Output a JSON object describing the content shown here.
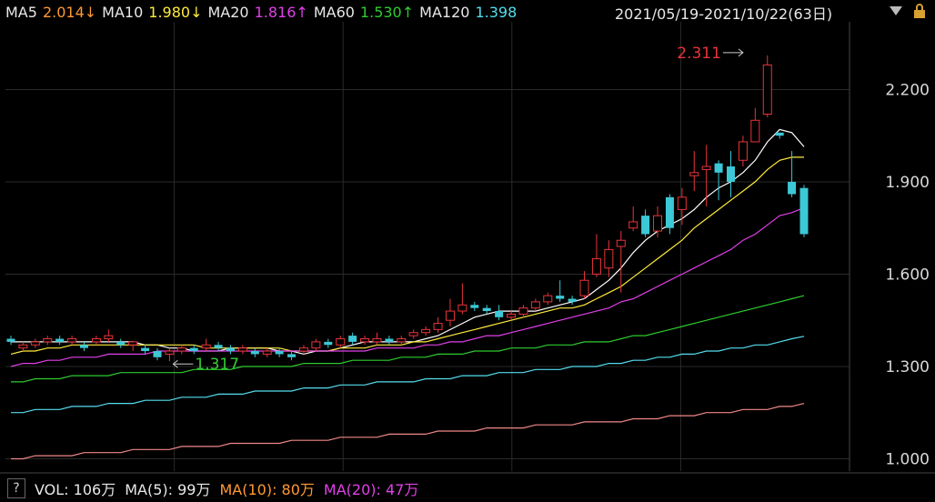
{
  "legend": {
    "ma5_label": "MA5",
    "ma5_value": "2.014↓",
    "ma10_label": "MA10",
    "ma10_value": "1.980↓",
    "ma20_label": "MA20",
    "ma20_value": "1.816↑",
    "ma60_label": "MA60",
    "ma60_value": "1.530↑",
    "ma120_label": "MA120",
    "ma120_value": "1.398",
    "date_overlay": "2021/05/19-2021/10/22(63日)"
  },
  "volume": {
    "help": "?",
    "vol": "VOL: 106万",
    "ma5": "MA(5): 99万",
    "ma10": "MA(10): 80万",
    "ma20": "MA(20): 47万"
  },
  "colors": {
    "up": "#e8343a",
    "down": "#3cc8d6",
    "ma5": "#ffffff",
    "ma10": "#ffeb3b",
    "ma20": "#e040e8",
    "ma60": "#2ecc2e",
    "ma120": "#55ddee",
    "ma250": "#f08888",
    "grid": "#2a2a2a"
  },
  "chart_data": {
    "type": "candlestick",
    "ylim": [
      0.96,
      2.42
    ],
    "yticks": [
      {
        "value": 1.0,
        "label": "1.000"
      },
      {
        "value": 1.3,
        "label": "1.300"
      },
      {
        "value": 1.6,
        "label": "1.600"
      },
      {
        "value": 1.9,
        "label": "1.900"
      },
      {
        "value": 2.2,
        "label": "2.200"
      }
    ],
    "annotations": [
      {
        "label": "2.311",
        "index": 60,
        "value": 2.311,
        "kind": "high"
      },
      {
        "label": "1.317",
        "index": 13,
        "value": 1.317,
        "kind": "low"
      }
    ],
    "candles": [
      [
        1.39,
        1.38,
        1.4,
        1.37
      ],
      [
        1.36,
        1.37,
        1.38,
        1.35
      ],
      [
        1.37,
        1.38,
        1.39,
        1.36
      ],
      [
        1.38,
        1.39,
        1.4,
        1.37
      ],
      [
        1.39,
        1.38,
        1.4,
        1.37
      ],
      [
        1.38,
        1.39,
        1.4,
        1.37
      ],
      [
        1.37,
        1.36,
        1.38,
        1.35
      ],
      [
        1.38,
        1.39,
        1.4,
        1.37
      ],
      [
        1.39,
        1.4,
        1.42,
        1.38
      ],
      [
        1.38,
        1.37,
        1.39,
        1.36
      ],
      [
        1.37,
        1.38,
        1.38,
        1.35
      ],
      [
        1.36,
        1.35,
        1.37,
        1.34
      ],
      [
        1.35,
        1.33,
        1.36,
        1.32
      ],
      [
        1.34,
        1.35,
        1.36,
        1.317
      ],
      [
        1.35,
        1.36,
        1.37,
        1.34
      ],
      [
        1.36,
        1.35,
        1.37,
        1.34
      ],
      [
        1.36,
        1.37,
        1.39,
        1.35
      ],
      [
        1.37,
        1.36,
        1.38,
        1.35
      ],
      [
        1.36,
        1.35,
        1.37,
        1.34
      ],
      [
        1.35,
        1.36,
        1.37,
        1.34
      ],
      [
        1.35,
        1.34,
        1.36,
        1.33
      ],
      [
        1.34,
        1.35,
        1.36,
        1.33
      ],
      [
        1.35,
        1.34,
        1.36,
        1.33
      ],
      [
        1.34,
        1.33,
        1.35,
        1.32
      ],
      [
        1.35,
        1.36,
        1.37,
        1.34
      ],
      [
        1.36,
        1.38,
        1.39,
        1.35
      ],
      [
        1.38,
        1.37,
        1.39,
        1.36
      ],
      [
        1.37,
        1.39,
        1.4,
        1.36
      ],
      [
        1.4,
        1.38,
        1.41,
        1.37
      ],
      [
        1.38,
        1.39,
        1.4,
        1.37
      ],
      [
        1.38,
        1.39,
        1.41,
        1.37
      ],
      [
        1.39,
        1.38,
        1.4,
        1.37
      ],
      [
        1.38,
        1.39,
        1.4,
        1.37
      ],
      [
        1.4,
        1.41,
        1.42,
        1.39
      ],
      [
        1.41,
        1.42,
        1.43,
        1.4
      ],
      [
        1.42,
        1.44,
        1.46,
        1.41
      ],
      [
        1.45,
        1.48,
        1.52,
        1.43
      ],
      [
        1.48,
        1.5,
        1.57,
        1.47
      ],
      [
        1.5,
        1.49,
        1.51,
        1.48
      ],
      [
        1.49,
        1.48,
        1.5,
        1.47
      ],
      [
        1.48,
        1.46,
        1.5,
        1.45
      ],
      [
        1.46,
        1.47,
        1.48,
        1.45
      ],
      [
        1.47,
        1.49,
        1.5,
        1.46
      ],
      [
        1.49,
        1.51,
        1.52,
        1.48
      ],
      [
        1.51,
        1.53,
        1.54,
        1.5
      ],
      [
        1.53,
        1.52,
        1.58,
        1.51
      ],
      [
        1.52,
        1.51,
        1.53,
        1.5
      ],
      [
        1.53,
        1.58,
        1.61,
        1.52
      ],
      [
        1.6,
        1.65,
        1.73,
        1.59
      ],
      [
        1.62,
        1.68,
        1.71,
        1.59
      ],
      [
        1.69,
        1.71,
        1.74,
        1.54
      ],
      [
        1.75,
        1.77,
        1.82,
        1.74
      ],
      [
        1.79,
        1.73,
        1.81,
        1.72
      ],
      [
        1.74,
        1.79,
        1.82,
        1.72
      ],
      [
        1.85,
        1.75,
        1.86,
        1.73
      ],
      [
        1.81,
        1.85,
        1.88,
        1.76
      ],
      [
        1.92,
        1.93,
        2.0,
        1.87
      ],
      [
        1.94,
        1.95,
        2.02,
        1.82
      ],
      [
        1.96,
        1.93,
        1.97,
        1.84
      ],
      [
        1.95,
        1.9,
        2.0,
        1.85
      ],
      [
        1.97,
        2.03,
        2.05,
        1.95
      ],
      [
        2.03,
        2.1,
        2.14,
        2.03
      ],
      [
        2.12,
        2.28,
        2.311,
        2.11
      ],
      [
        2.06,
        2.05,
        2.06,
        2.04
      ],
      [
        1.9,
        1.86,
        2.0,
        1.85
      ],
      [
        1.88,
        1.73,
        1.89,
        1.72
      ]
    ],
    "ma_lines": [
      {
        "name": "MA5",
        "color_key": "ma5",
        "values": [
          1.38,
          1.38,
          1.38,
          1.38,
          1.38,
          1.38,
          1.38,
          1.38,
          1.38,
          1.38,
          1.38,
          1.37,
          1.37,
          1.36,
          1.36,
          1.35,
          1.35,
          1.35,
          1.36,
          1.36,
          1.36,
          1.36,
          1.35,
          1.35,
          1.34,
          1.35,
          1.35,
          1.36,
          1.37,
          1.38,
          1.38,
          1.38,
          1.38,
          1.38,
          1.39,
          1.4,
          1.42,
          1.44,
          1.46,
          1.47,
          1.48,
          1.48,
          1.48,
          1.48,
          1.49,
          1.5,
          1.51,
          1.52,
          1.55,
          1.58,
          1.62,
          1.67,
          1.71,
          1.74,
          1.76,
          1.78,
          1.81,
          1.85,
          1.88,
          1.9,
          1.93,
          1.97,
          2.03,
          2.07,
          2.06,
          2.014
        ]
      },
      {
        "name": "MA10",
        "color_key": "ma10",
        "values": [
          1.34,
          1.35,
          1.35,
          1.36,
          1.36,
          1.37,
          1.37,
          1.37,
          1.37,
          1.37,
          1.37,
          1.37,
          1.37,
          1.37,
          1.37,
          1.37,
          1.36,
          1.36,
          1.36,
          1.36,
          1.36,
          1.36,
          1.36,
          1.35,
          1.35,
          1.35,
          1.35,
          1.36,
          1.36,
          1.36,
          1.37,
          1.37,
          1.37,
          1.38,
          1.38,
          1.39,
          1.4,
          1.41,
          1.42,
          1.43,
          1.44,
          1.45,
          1.46,
          1.47,
          1.48,
          1.49,
          1.49,
          1.5,
          1.52,
          1.54,
          1.56,
          1.59,
          1.62,
          1.65,
          1.68,
          1.71,
          1.75,
          1.78,
          1.81,
          1.84,
          1.87,
          1.9,
          1.94,
          1.97,
          1.98,
          1.98
        ]
      },
      {
        "name": "MA20",
        "color_key": "ma20",
        "values": [
          1.3,
          1.31,
          1.31,
          1.32,
          1.32,
          1.33,
          1.33,
          1.33,
          1.34,
          1.34,
          1.34,
          1.34,
          1.35,
          1.35,
          1.35,
          1.35,
          1.35,
          1.35,
          1.35,
          1.35,
          1.35,
          1.35,
          1.35,
          1.35,
          1.35,
          1.35,
          1.35,
          1.35,
          1.35,
          1.35,
          1.36,
          1.36,
          1.36,
          1.36,
          1.37,
          1.37,
          1.38,
          1.38,
          1.39,
          1.4,
          1.4,
          1.41,
          1.42,
          1.43,
          1.44,
          1.45,
          1.46,
          1.47,
          1.48,
          1.49,
          1.51,
          1.52,
          1.54,
          1.56,
          1.58,
          1.6,
          1.62,
          1.64,
          1.66,
          1.68,
          1.71,
          1.73,
          1.76,
          1.79,
          1.8,
          1.816
        ]
      },
      {
        "name": "MA60",
        "color_key": "ma60",
        "values": [
          1.25,
          1.25,
          1.26,
          1.26,
          1.26,
          1.27,
          1.27,
          1.27,
          1.27,
          1.28,
          1.28,
          1.28,
          1.28,
          1.28,
          1.28,
          1.29,
          1.29,
          1.29,
          1.29,
          1.3,
          1.3,
          1.3,
          1.3,
          1.3,
          1.31,
          1.31,
          1.31,
          1.31,
          1.32,
          1.32,
          1.32,
          1.32,
          1.33,
          1.33,
          1.33,
          1.34,
          1.34,
          1.34,
          1.35,
          1.35,
          1.35,
          1.36,
          1.36,
          1.36,
          1.37,
          1.37,
          1.37,
          1.38,
          1.38,
          1.38,
          1.39,
          1.4,
          1.4,
          1.41,
          1.42,
          1.43,
          1.44,
          1.45,
          1.46,
          1.47,
          1.48,
          1.49,
          1.5,
          1.51,
          1.52,
          1.53
        ]
      },
      {
        "name": "MA120",
        "color_key": "ma120",
        "values": [
          1.15,
          1.15,
          1.16,
          1.16,
          1.16,
          1.17,
          1.17,
          1.17,
          1.18,
          1.18,
          1.18,
          1.19,
          1.19,
          1.19,
          1.2,
          1.2,
          1.2,
          1.21,
          1.21,
          1.21,
          1.22,
          1.22,
          1.22,
          1.22,
          1.23,
          1.23,
          1.23,
          1.24,
          1.24,
          1.24,
          1.25,
          1.25,
          1.25,
          1.25,
          1.26,
          1.26,
          1.26,
          1.27,
          1.27,
          1.27,
          1.28,
          1.28,
          1.28,
          1.29,
          1.29,
          1.29,
          1.3,
          1.3,
          1.3,
          1.31,
          1.31,
          1.32,
          1.32,
          1.33,
          1.33,
          1.34,
          1.34,
          1.35,
          1.35,
          1.36,
          1.36,
          1.37,
          1.37,
          1.38,
          1.39,
          1.398
        ]
      },
      {
        "name": "MA250",
        "color_key": "ma250",
        "values": [
          1.0,
          1.0,
          1.01,
          1.01,
          1.01,
          1.01,
          1.02,
          1.02,
          1.02,
          1.02,
          1.03,
          1.03,
          1.03,
          1.03,
          1.04,
          1.04,
          1.04,
          1.04,
          1.05,
          1.05,
          1.05,
          1.05,
          1.05,
          1.06,
          1.06,
          1.06,
          1.06,
          1.07,
          1.07,
          1.07,
          1.07,
          1.08,
          1.08,
          1.08,
          1.08,
          1.09,
          1.09,
          1.09,
          1.09,
          1.1,
          1.1,
          1.1,
          1.1,
          1.11,
          1.11,
          1.11,
          1.11,
          1.12,
          1.12,
          1.12,
          1.12,
          1.13,
          1.13,
          1.13,
          1.14,
          1.14,
          1.14,
          1.15,
          1.15,
          1.15,
          1.16,
          1.16,
          1.16,
          1.17,
          1.17,
          1.18
        ]
      }
    ]
  }
}
